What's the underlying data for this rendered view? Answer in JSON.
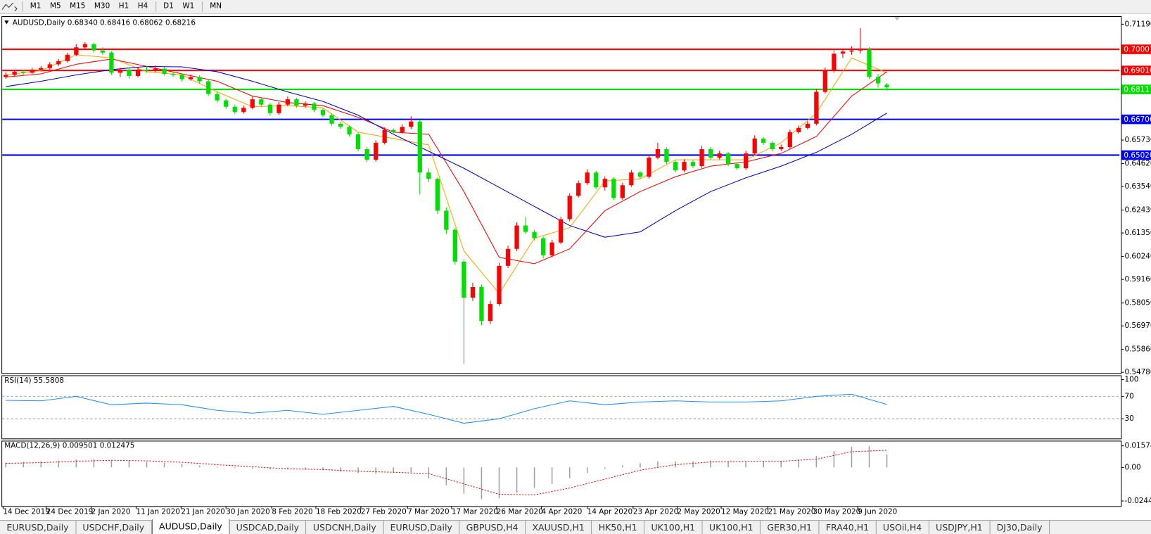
{
  "toolbar": {
    "timeframes": [
      "M1",
      "M5",
      "M15",
      "M30",
      "H1",
      "H4",
      "D1",
      "W1",
      "MN"
    ]
  },
  "chart_data": [
    {
      "type": "candlestick",
      "title": "AUDUSD,Daily  0.68340 0.68416 0.68062 0.68216",
      "bull_color": "#ff0000",
      "bear_color": "#00e000",
      "xlim": [
        -0.4,
        126.4
      ],
      "xticks": [
        {
          "value": -0.3,
          "label": "14 Dec 2019"
        },
        {
          "value": 4.6,
          "label": "24 Dec 2019"
        },
        {
          "value": 9.7,
          "label": "2 Jan 2020"
        },
        {
          "value": 14.8,
          "label": "11 Jan 2020"
        },
        {
          "value": 19.9,
          "label": "21 Jan 2020"
        },
        {
          "value": 25,
          "label": "30 Jan 2020"
        },
        {
          "value": 30.2,
          "label": "8 Feb 2020"
        },
        {
          "value": 35.2,
          "label": "18 Feb 2020"
        },
        {
          "value": 40.3,
          "label": "27 Feb 2020"
        },
        {
          "value": 45.6,
          "label": "7 Mar 2020"
        },
        {
          "value": 50.6,
          "label": "17 Mar 2020"
        },
        {
          "value": 55.7,
          "label": "26 Mar 2020"
        },
        {
          "value": 60.8,
          "label": "4 Apr 2020"
        },
        {
          "value": 66,
          "label": "14 Apr 2020"
        },
        {
          "value": 71.2,
          "label": "23 Apr 2020"
        },
        {
          "value": 76.2,
          "label": "2 May 2020"
        },
        {
          "value": 81.2,
          "label": "12 May 2020"
        },
        {
          "value": 86.5,
          "label": "21 May 2020"
        },
        {
          "value": 91.6,
          "label": "30 May 2020"
        },
        {
          "value": 96.7,
          "label": "9 Jun 2020"
        }
      ],
      "ylim": [
        0.54743,
        0.715
      ],
      "yticks": [
        {
          "value": 0.7119,
          "label": "0.71190"
        },
        {
          "value": 0.6573,
          "label": "0.65730"
        },
        {
          "value": 0.6462,
          "label": "0.64620"
        },
        {
          "value": 0.6354,
          "label": "0.63540"
        },
        {
          "value": 0.6243,
          "label": "0.62430"
        },
        {
          "value": 0.6135,
          "label": "0.61350"
        },
        {
          "value": 0.6024,
          "label": "0.60240"
        },
        {
          "value": 0.5916,
          "label": "0.59160"
        },
        {
          "value": 0.5805,
          "label": "0.58050"
        },
        {
          "value": 0.5697,
          "label": "0.56970"
        },
        {
          "value": 0.5586,
          "label": "0.55860"
        },
        {
          "value": 0.5478,
          "label": "0.54780"
        }
      ],
      "levels": [
        {
          "value": 0.70007,
          "color": "#ff0000"
        },
        {
          "value": 0.6901,
          "label": "0.69010",
          "color": "#ff0000"
        },
        {
          "value": 0.68117,
          "color": "#00e000"
        },
        {
          "value": 0.66706,
          "color": "#0000ff"
        },
        {
          "value": 0.6502,
          "label": "0.65020",
          "color": "#0000ff"
        }
      ],
      "ohlc": [
        [
          0.687,
          0.6892,
          0.6862,
          0.688
        ],
        [
          0.688,
          0.6902,
          0.6872,
          0.6895
        ],
        [
          0.6895,
          0.6905,
          0.6878,
          0.689
        ],
        [
          0.689,
          0.6915,
          0.6884,
          0.6905
        ],
        [
          0.6905,
          0.6922,
          0.6896,
          0.6912
        ],
        [
          0.6912,
          0.694,
          0.6905,
          0.693
        ],
        [
          0.693,
          0.6955,
          0.6922,
          0.6945
        ],
        [
          0.6945,
          0.6985,
          0.6938,
          0.6975
        ],
        [
          0.6975,
          0.7025,
          0.6968,
          0.701
        ],
        [
          0.701,
          0.7035,
          0.7,
          0.7025
        ],
        [
          0.7025,
          0.7032,
          0.6985,
          0.6995
        ],
        [
          0.6995,
          0.701,
          0.6975,
          0.6985
        ],
        [
          0.6985,
          0.6992,
          0.688,
          0.689
        ],
        [
          0.689,
          0.6915,
          0.687,
          0.6905
        ],
        [
          0.6905,
          0.6912,
          0.6862,
          0.6875
        ],
        [
          0.6875,
          0.6918,
          0.6868,
          0.6905
        ],
        [
          0.6905,
          0.6922,
          0.689,
          0.69
        ],
        [
          0.69,
          0.6925,
          0.6892,
          0.691
        ],
        [
          0.691,
          0.6918,
          0.6876,
          0.6885
        ],
        [
          0.6885,
          0.6895,
          0.687,
          0.688
        ],
        [
          0.688,
          0.6888,
          0.685,
          0.686
        ],
        [
          0.686,
          0.6882,
          0.6852,
          0.687
        ],
        [
          0.687,
          0.6878,
          0.684,
          0.685
        ],
        [
          0.685,
          0.6858,
          0.678,
          0.679
        ],
        [
          0.679,
          0.68,
          0.675,
          0.676
        ],
        [
          0.676,
          0.6768,
          0.672,
          0.673
        ],
        [
          0.673,
          0.674,
          0.6695,
          0.6705
        ],
        [
          0.6705,
          0.6735,
          0.6698,
          0.6725
        ],
        [
          0.6725,
          0.6778,
          0.6718,
          0.6765
        ],
        [
          0.6765,
          0.6772,
          0.673,
          0.674
        ],
        [
          0.674,
          0.6748,
          0.6688,
          0.67
        ],
        [
          0.67,
          0.6752,
          0.6692,
          0.674
        ],
        [
          0.674,
          0.6778,
          0.6732,
          0.6765
        ],
        [
          0.6765,
          0.6772,
          0.6725,
          0.6735
        ],
        [
          0.6735,
          0.6755,
          0.6725,
          0.6745
        ],
        [
          0.6745,
          0.6752,
          0.6705,
          0.6715
        ],
        [
          0.6715,
          0.6722,
          0.668,
          0.669
        ],
        [
          0.669,
          0.6698,
          0.664,
          0.665
        ],
        [
          0.665,
          0.666,
          0.6625,
          0.6635
        ],
        [
          0.6635,
          0.6642,
          0.659,
          0.66
        ],
        [
          0.66,
          0.6608,
          0.652,
          0.653
        ],
        [
          0.653,
          0.654,
          0.647,
          0.648
        ],
        [
          0.648,
          0.6572,
          0.6472,
          0.656
        ],
        [
          0.656,
          0.6632,
          0.6552,
          0.662
        ],
        [
          0.662,
          0.6628,
          0.6598,
          0.661
        ],
        [
          0.661,
          0.6648,
          0.6602,
          0.6635
        ],
        [
          0.6635,
          0.6685,
          0.6625,
          0.666
        ],
        [
          0.666,
          0.6668,
          0.6316,
          0.642
        ],
        [
          0.642,
          0.644,
          0.6375,
          0.639
        ],
        [
          0.639,
          0.6398,
          0.6225,
          0.624
        ],
        [
          0.624,
          0.6255,
          0.613,
          0.615
        ],
        [
          0.615,
          0.616,
          0.5985,
          0.6
        ],
        [
          0.6,
          0.6012,
          0.5519,
          0.583
        ],
        [
          0.583,
          0.59,
          0.5815,
          0.588
        ],
        [
          0.588,
          0.5892,
          0.57,
          0.572
        ],
        [
          0.572,
          0.5815,
          0.5705,
          0.58
        ],
        [
          0.58,
          0.5995,
          0.579,
          0.598
        ],
        [
          0.598,
          0.6075,
          0.597,
          0.606
        ],
        [
          0.606,
          0.6185,
          0.605,
          0.617
        ],
        [
          0.617,
          0.621,
          0.613,
          0.614
        ],
        [
          0.614,
          0.615,
          0.61,
          0.611
        ],
        [
          0.611,
          0.6118,
          0.6015,
          0.603
        ],
        [
          0.603,
          0.6102,
          0.602,
          0.609
        ],
        [
          0.609,
          0.6212,
          0.6082,
          0.62
        ],
        [
          0.62,
          0.6322,
          0.619,
          0.631
        ],
        [
          0.631,
          0.6382,
          0.6302,
          0.637
        ],
        [
          0.637,
          0.6435,
          0.6362,
          0.642
        ],
        [
          0.642,
          0.6428,
          0.634,
          0.635
        ],
        [
          0.635,
          0.6402,
          0.6335,
          0.639
        ],
        [
          0.639,
          0.6398,
          0.629,
          0.63
        ],
        [
          0.63,
          0.6372,
          0.6292,
          0.636
        ],
        [
          0.636,
          0.6432,
          0.6352,
          0.642
        ],
        [
          0.642,
          0.6428,
          0.639,
          0.64
        ],
        [
          0.64,
          0.6502,
          0.6392,
          0.649
        ],
        [
          0.649,
          0.656,
          0.6482,
          0.653
        ],
        [
          0.653,
          0.6538,
          0.646,
          0.647
        ],
        [
          0.647,
          0.6478,
          0.642,
          0.643
        ],
        [
          0.643,
          0.6482,
          0.6422,
          0.647
        ],
        [
          0.647,
          0.6478,
          0.644,
          0.645
        ],
        [
          0.645,
          0.6545,
          0.6442,
          0.653
        ],
        [
          0.653,
          0.654,
          0.648,
          0.649
        ],
        [
          0.649,
          0.6522,
          0.6482,
          0.651
        ],
        [
          0.651,
          0.6518,
          0.645,
          0.646
        ],
        [
          0.646,
          0.6468,
          0.6432,
          0.644
        ],
        [
          0.644,
          0.6522,
          0.6432,
          0.651
        ],
        [
          0.651,
          0.6595,
          0.6502,
          0.658
        ],
        [
          0.658,
          0.6588,
          0.655,
          0.656
        ],
        [
          0.656,
          0.6568,
          0.652,
          0.653
        ],
        [
          0.653,
          0.6552,
          0.6522,
          0.654
        ],
        [
          0.654,
          0.6622,
          0.6532,
          0.661
        ],
        [
          0.661,
          0.6642,
          0.6602,
          0.663
        ],
        [
          0.663,
          0.6662,
          0.6622,
          0.665
        ],
        [
          0.665,
          0.6815,
          0.6642,
          0.68
        ],
        [
          0.68,
          0.6915,
          0.6792,
          0.69
        ],
        [
          0.69,
          0.6995,
          0.689,
          0.698
        ],
        [
          0.698,
          0.7005,
          0.696,
          0.699
        ],
        [
          0.699,
          0.7015,
          0.6975,
          0.6995
        ],
        [
          0.6995,
          0.71,
          0.698,
          0.7
        ],
        [
          0.7,
          0.701,
          0.686,
          0.687
        ],
        [
          0.687,
          0.6885,
          0.682,
          0.684
        ],
        [
          0.6834,
          0.68416,
          0.68062,
          0.68216
        ]
      ],
      "series": [
        {
          "color": "#ffa500",
          "x": [
            0,
            4,
            8,
            12,
            16,
            20,
            24,
            28,
            32,
            36,
            40,
            44,
            48,
            52,
            56,
            60,
            64,
            68,
            72,
            76,
            80,
            84,
            88,
            92,
            96,
            100
          ],
          "values": [
            0.688,
            0.69,
            0.6975,
            0.696,
            0.6895,
            0.688,
            0.68,
            0.673,
            0.6735,
            0.6725,
            0.661,
            0.658,
            0.655,
            0.605,
            0.585,
            0.611,
            0.616,
            0.638,
            0.639,
            0.648,
            0.648,
            0.648,
            0.656,
            0.67,
            0.696,
            0.689
          ]
        },
        {
          "color": "#ff0000",
          "x": [
            0,
            4,
            8,
            12,
            16,
            20,
            24,
            28,
            32,
            36,
            40,
            44,
            48,
            52,
            56,
            60,
            64,
            68,
            72,
            76,
            80,
            84,
            88,
            92,
            96,
            100
          ],
          "values": [
            0.687,
            0.6885,
            0.693,
            0.6955,
            0.692,
            0.6885,
            0.685,
            0.678,
            0.675,
            0.6735,
            0.668,
            0.661,
            0.66,
            0.633,
            0.602,
            0.599,
            0.606,
            0.624,
            0.633,
            0.64,
            0.645,
            0.647,
            0.651,
            0.659,
            0.678,
            0.6895
          ]
        },
        {
          "color": "#0000cd",
          "x": [
            0,
            4,
            8,
            12,
            16,
            20,
            24,
            28,
            32,
            36,
            40,
            44,
            48,
            52,
            56,
            60,
            64,
            68,
            72,
            76,
            80,
            84,
            88,
            92,
            96,
            100
          ],
          "values": [
            0.6825,
            0.685,
            0.688,
            0.6905,
            0.692,
            0.6918,
            0.6895,
            0.685,
            0.68,
            0.6755,
            0.669,
            0.66,
            0.652,
            0.644,
            0.635,
            0.626,
            0.617,
            0.6115,
            0.614,
            0.624,
            0.633,
            0.6395,
            0.645,
            0.6515,
            0.66,
            0.67
          ]
        }
      ]
    },
    {
      "type": "line",
      "title": "RSI(14) 55.5808",
      "color": "#1e90ff",
      "x": [
        0,
        4,
        8,
        12,
        16,
        20,
        24,
        28,
        32,
        36,
        40,
        44,
        48,
        52,
        56,
        60,
        64,
        68,
        72,
        76,
        80,
        84,
        88,
        92,
        96,
        100
      ],
      "values": [
        63,
        62,
        70,
        55,
        58,
        55,
        45,
        40,
        45,
        38,
        45,
        52,
        38,
        22,
        30,
        48,
        62,
        55,
        60,
        62,
        60,
        60,
        62,
        70,
        74,
        55.6
      ],
      "ylim": [
        -4,
        105
      ],
      "yticks": [
        100,
        70,
        30
      ],
      "levels": [
        70,
        30
      ]
    },
    {
      "type": "macd",
      "title": "MACD(12,26,9) 0.009501 0.012475",
      "histogram_color": "#a0a0a0",
      "signal_color": "#ff0000",
      "histogram_x": [
        0,
        2,
        4,
        6,
        8,
        10,
        12,
        14,
        16,
        18,
        20,
        22,
        24,
        26,
        28,
        30,
        32,
        34,
        36,
        38,
        40,
        42,
        44,
        46,
        48,
        50,
        52,
        54,
        56,
        58,
        60,
        62,
        64,
        66,
        68,
        70,
        72,
        74,
        76,
        78,
        80,
        82,
        84,
        86,
        88,
        90,
        92,
        94,
        96,
        98,
        100
      ],
      "histogram": [
        0.0035,
        0.004,
        0.0045,
        0.005,
        0.0058,
        0.006,
        0.0055,
        0.0048,
        0.0042,
        0.0035,
        0.0025,
        0.0015,
        0.0005,
        -0.0005,
        -0.001,
        -0.0015,
        -0.0015,
        -0.0015,
        -0.002,
        -0.003,
        -0.004,
        -0.0045,
        -0.004,
        -0.0035,
        -0.008,
        -0.013,
        -0.019,
        -0.023,
        -0.0225,
        -0.0185,
        -0.015,
        -0.012,
        -0.008,
        -0.004,
        -0.001,
        0.0015,
        0.003,
        0.0045,
        0.0045,
        0.0045,
        0.005,
        0.0045,
        0.004,
        0.0045,
        0.005,
        0.006,
        0.0085,
        0.012,
        0.015,
        0.0155,
        0.0095
      ],
      "signal_x": [
        0,
        4,
        8,
        12,
        16,
        20,
        24,
        28,
        32,
        36,
        40,
        44,
        48,
        52,
        56,
        60,
        64,
        68,
        72,
        76,
        80,
        84,
        88,
        92,
        96,
        100
      ],
      "signal": [
        0.003,
        0.0035,
        0.0045,
        0.0052,
        0.0048,
        0.0038,
        0.002,
        0.0005,
        -0.001,
        -0.0015,
        -0.0028,
        -0.0035,
        -0.0045,
        -0.012,
        -0.0195,
        -0.02,
        -0.015,
        -0.0085,
        -0.002,
        0.002,
        0.004,
        0.0045,
        0.0045,
        0.006,
        0.0115,
        0.0125
      ],
      "ylim": [
        -0.0276,
        0.0184
      ],
      "yticks": [
        0.015741,
        {
          "value": 0,
          "label": "0.00"
        },
        -0.02441
      ]
    }
  ],
  "tabs": [
    "EURUSD,Daily",
    "USDCHF,Daily",
    "AUDUSD,Daily",
    "USDCAD,Daily",
    "USDCNH,Daily",
    "EURUSD,Daily",
    "GBPUSD,H4",
    "XAUUSD,H1",
    "HK50,H1",
    "UK100,H1",
    "UK100,H1",
    "GER30,H1",
    "FRA40,H1",
    "USOil,H4",
    "USDJPY,H1",
    "DJ30,Daily"
  ],
  "active_tab": 2
}
